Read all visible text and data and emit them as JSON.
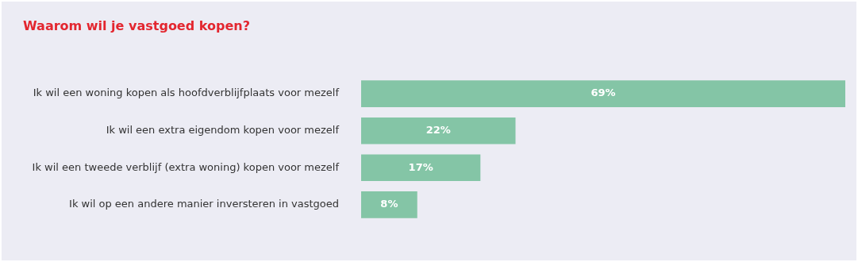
{
  "chart_data": {
    "type": "bar",
    "orientation": "horizontal",
    "title": "Waarom wil je vastgoed kopen?",
    "categories": [
      "Ik wil een woning kopen als hoofdverblijfplaats voor mezelf",
      "Ik wil een extra eigendom kopen voor mezelf",
      "Ik wil een tweede verblijf (extra woning) kopen voor mezelf",
      "Ik wil op een andere manier inversteren in vastgoed"
    ],
    "values": [
      69,
      22,
      17,
      8
    ],
    "value_labels": [
      "69%",
      "22%",
      "17%",
      "8%"
    ],
    "color": "#84c5a6"
  }
}
